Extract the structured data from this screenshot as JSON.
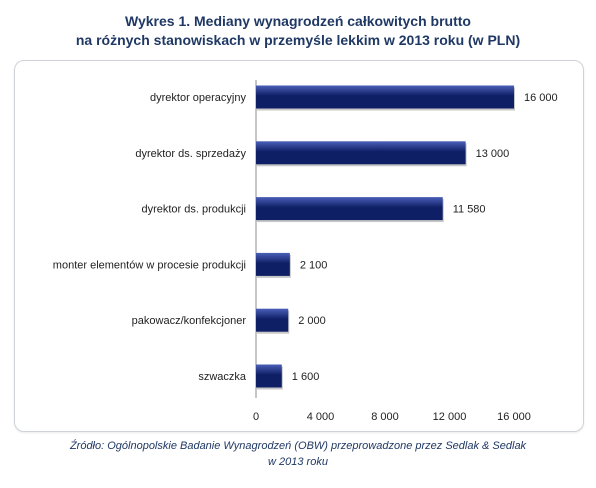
{
  "title": {
    "line1": "Wykres 1. Mediany wynagrodzeń całkowitych brutto",
    "line2": "na różnych stanowiskach w przemyśle lekkim w 2013 roku (w PLN)"
  },
  "source": {
    "line1": "Źródło: Ogólnopolskie Badanie Wynagrodzeń (OBW) przeprowadzone przez Sedlak & Sedlak",
    "line2": "w 2013 roku"
  },
  "colors": {
    "bar_dark": "#0f1f66",
    "bar_light": "#4a5fb8",
    "text": "#1f1f1f",
    "title": "#1f3864"
  },
  "chart_data": {
    "type": "bar",
    "orientation": "horizontal",
    "categories": [
      "dyrektor operacyjny",
      "dyrektor ds. sprzedaży",
      "dyrektor ds. produkcji",
      "monter elementów w procesie produkcji",
      "pakowacz/konfekcjoner",
      "szwaczka"
    ],
    "values": [
      16000,
      13000,
      11580,
      2100,
      2000,
      1600
    ],
    "value_labels": [
      "16 000",
      "13 000",
      "11 580",
      "2 100",
      "2 000",
      "1 600"
    ],
    "x_ticks": [
      0,
      4000,
      8000,
      12000,
      16000
    ],
    "x_tick_labels": [
      "0",
      "4 000",
      "8 000",
      "12 000",
      "16 000"
    ],
    "xlim": [
      0,
      18000
    ],
    "grid": false,
    "legend": "none"
  }
}
